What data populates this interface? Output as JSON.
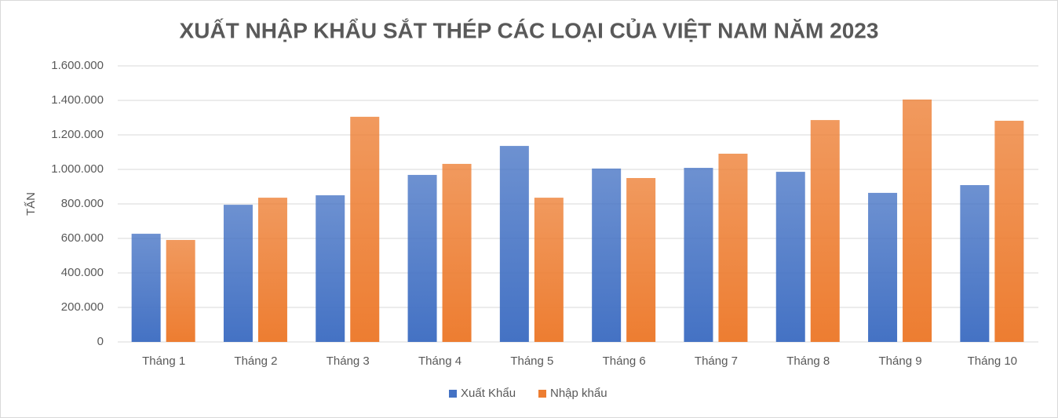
{
  "chart_data": {
    "type": "bar",
    "title": "XUẤT NHẬP KHẨU SẮT THÉP CÁC LOẠI CỦA VIỆT NAM NĂM 2023",
    "y_label": "TẤN",
    "categories": [
      "Tháng 1",
      "Tháng 2",
      "Tháng 3",
      "Tháng 4",
      "Tháng 5",
      "Tháng 6",
      "Tháng 7",
      "Tháng 8",
      "Tháng 9",
      "Tháng 10"
    ],
    "series": [
      {
        "name": "Xuất Khẩu",
        "color": "#4472c4",
        "values": [
          627000,
          795000,
          850000,
          968000,
          1136000,
          1005000,
          1009000,
          986000,
          864000,
          909000
        ]
      },
      {
        "name": "Nhập khẩu",
        "color": "#ed7d31",
        "values": [
          591000,
          836000,
          1305000,
          1032000,
          836000,
          950000,
          1091000,
          1286000,
          1405000,
          1282000
        ]
      }
    ],
    "ylim": [
      0,
      1600000
    ],
    "yticks": [
      0,
      {
        "value": 200000,
        "label": "200.000"
      },
      {
        "value": 400000,
        "label": "400.000"
      },
      {
        "value": 600000,
        "label": "600.000"
      },
      {
        "value": 800000,
        "label": "800.000"
      },
      {
        "value": 1000000,
        "label": "1.000.000"
      },
      {
        "value": 1200000,
        "label": "1.200.000"
      },
      {
        "value": 1400000,
        "label": "1.400.000"
      },
      {
        "value": 1600000,
        "label": "1.600.000"
      }
    ],
    "grid": true,
    "legend": "bottom"
  }
}
